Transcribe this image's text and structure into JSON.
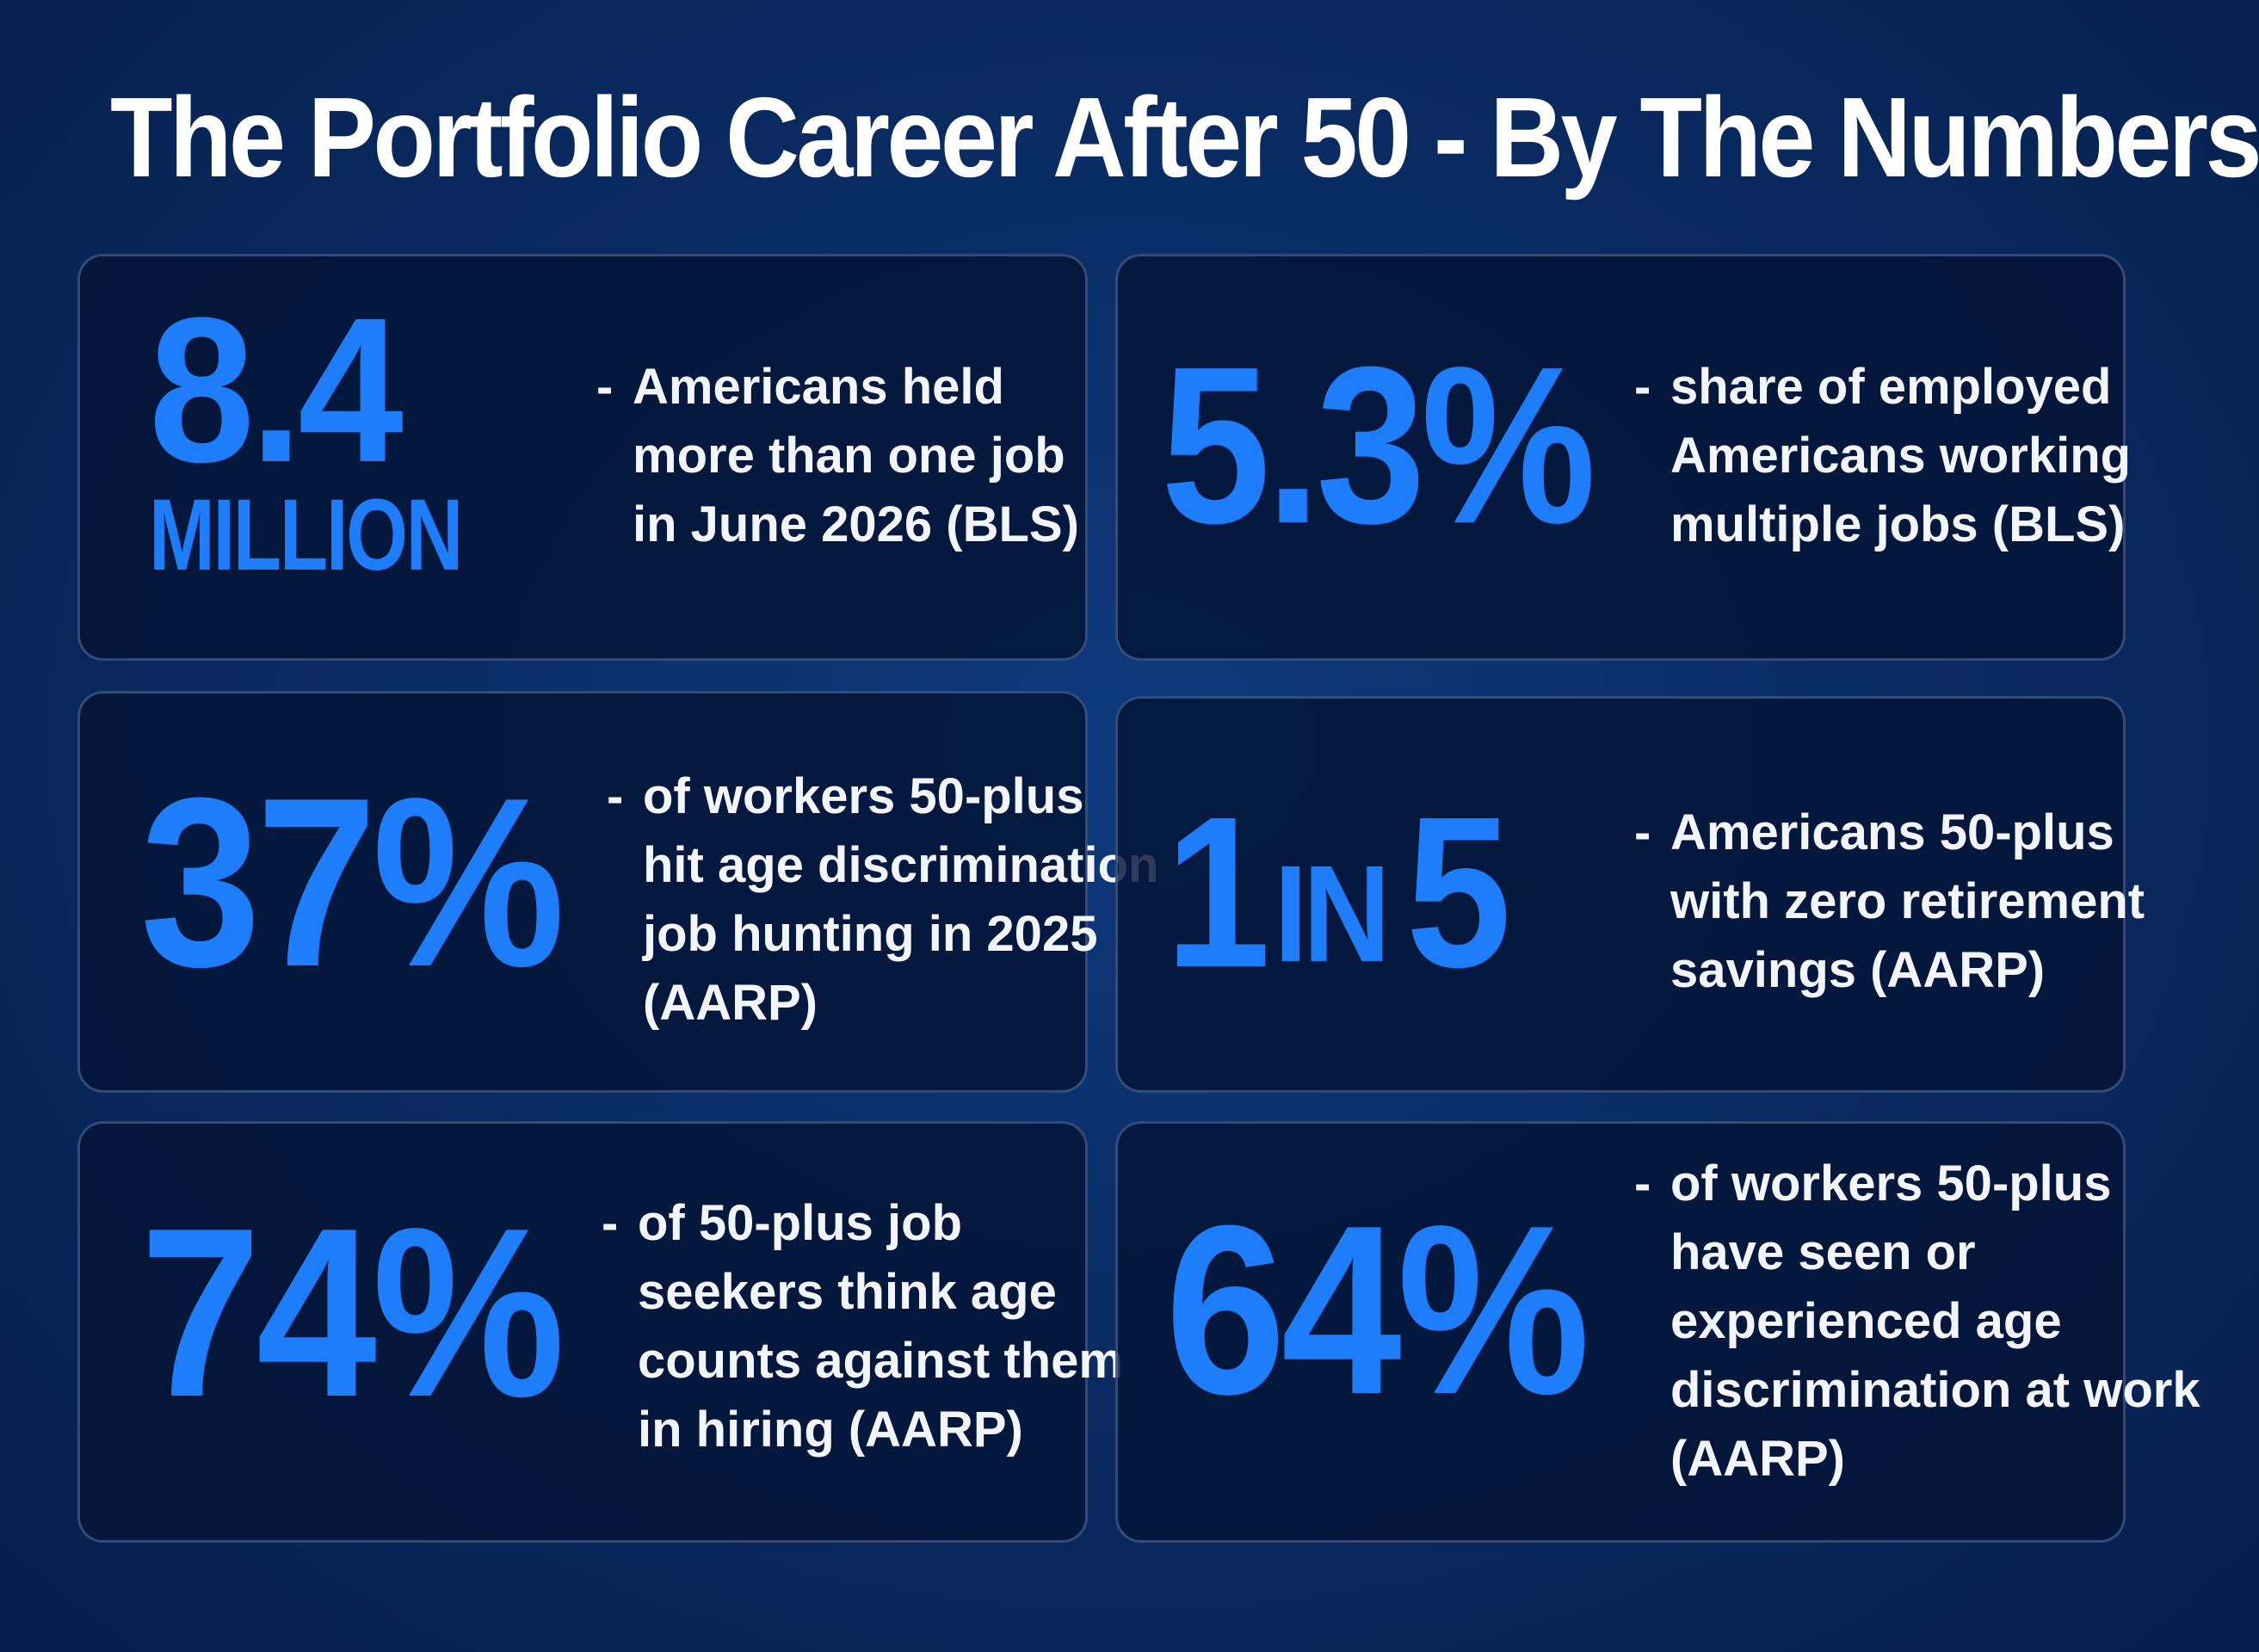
{
  "title": "The Portfolio Career After 50 - By The Numbers",
  "colors": {
    "background": "#0a2c64",
    "card_background": "#041434",
    "accent": "#1e7dfb",
    "text": "#ffffff"
  },
  "cards": [
    {
      "stat": "8.4",
      "stat_sub": "MILLION",
      "dash": "-",
      "lines": [
        "Americans held",
        "more than one job",
        "in June 2026 (BLS)"
      ]
    },
    {
      "stat": "5.3%",
      "dash": "-",
      "lines": [
        "share of employed",
        "Americans working",
        "multiple jobs (BLS)"
      ]
    },
    {
      "stat": "37%",
      "dash": "-",
      "lines": [
        "of workers 50-plus",
        "hit age discrimination",
        "job hunting in 2025",
        "(AARP)"
      ]
    },
    {
      "stat_1": "1",
      "stat_in": "IN",
      "stat_5": "5",
      "dash": "-",
      "lines": [
        "Americans 50-plus",
        "with zero retirement",
        "savings (AARP)"
      ]
    },
    {
      "stat": "74%",
      "dash": "-",
      "lines": [
        "of 50-plus job",
        "seekers think age",
        "counts against them",
        "in hiring (AARP)"
      ]
    },
    {
      "stat": "64%",
      "dash": "-",
      "lines": [
        "of workers 50-plus",
        "have seen or",
        "experienced age",
        "discrimination at work",
        "(AARP)"
      ]
    }
  ]
}
